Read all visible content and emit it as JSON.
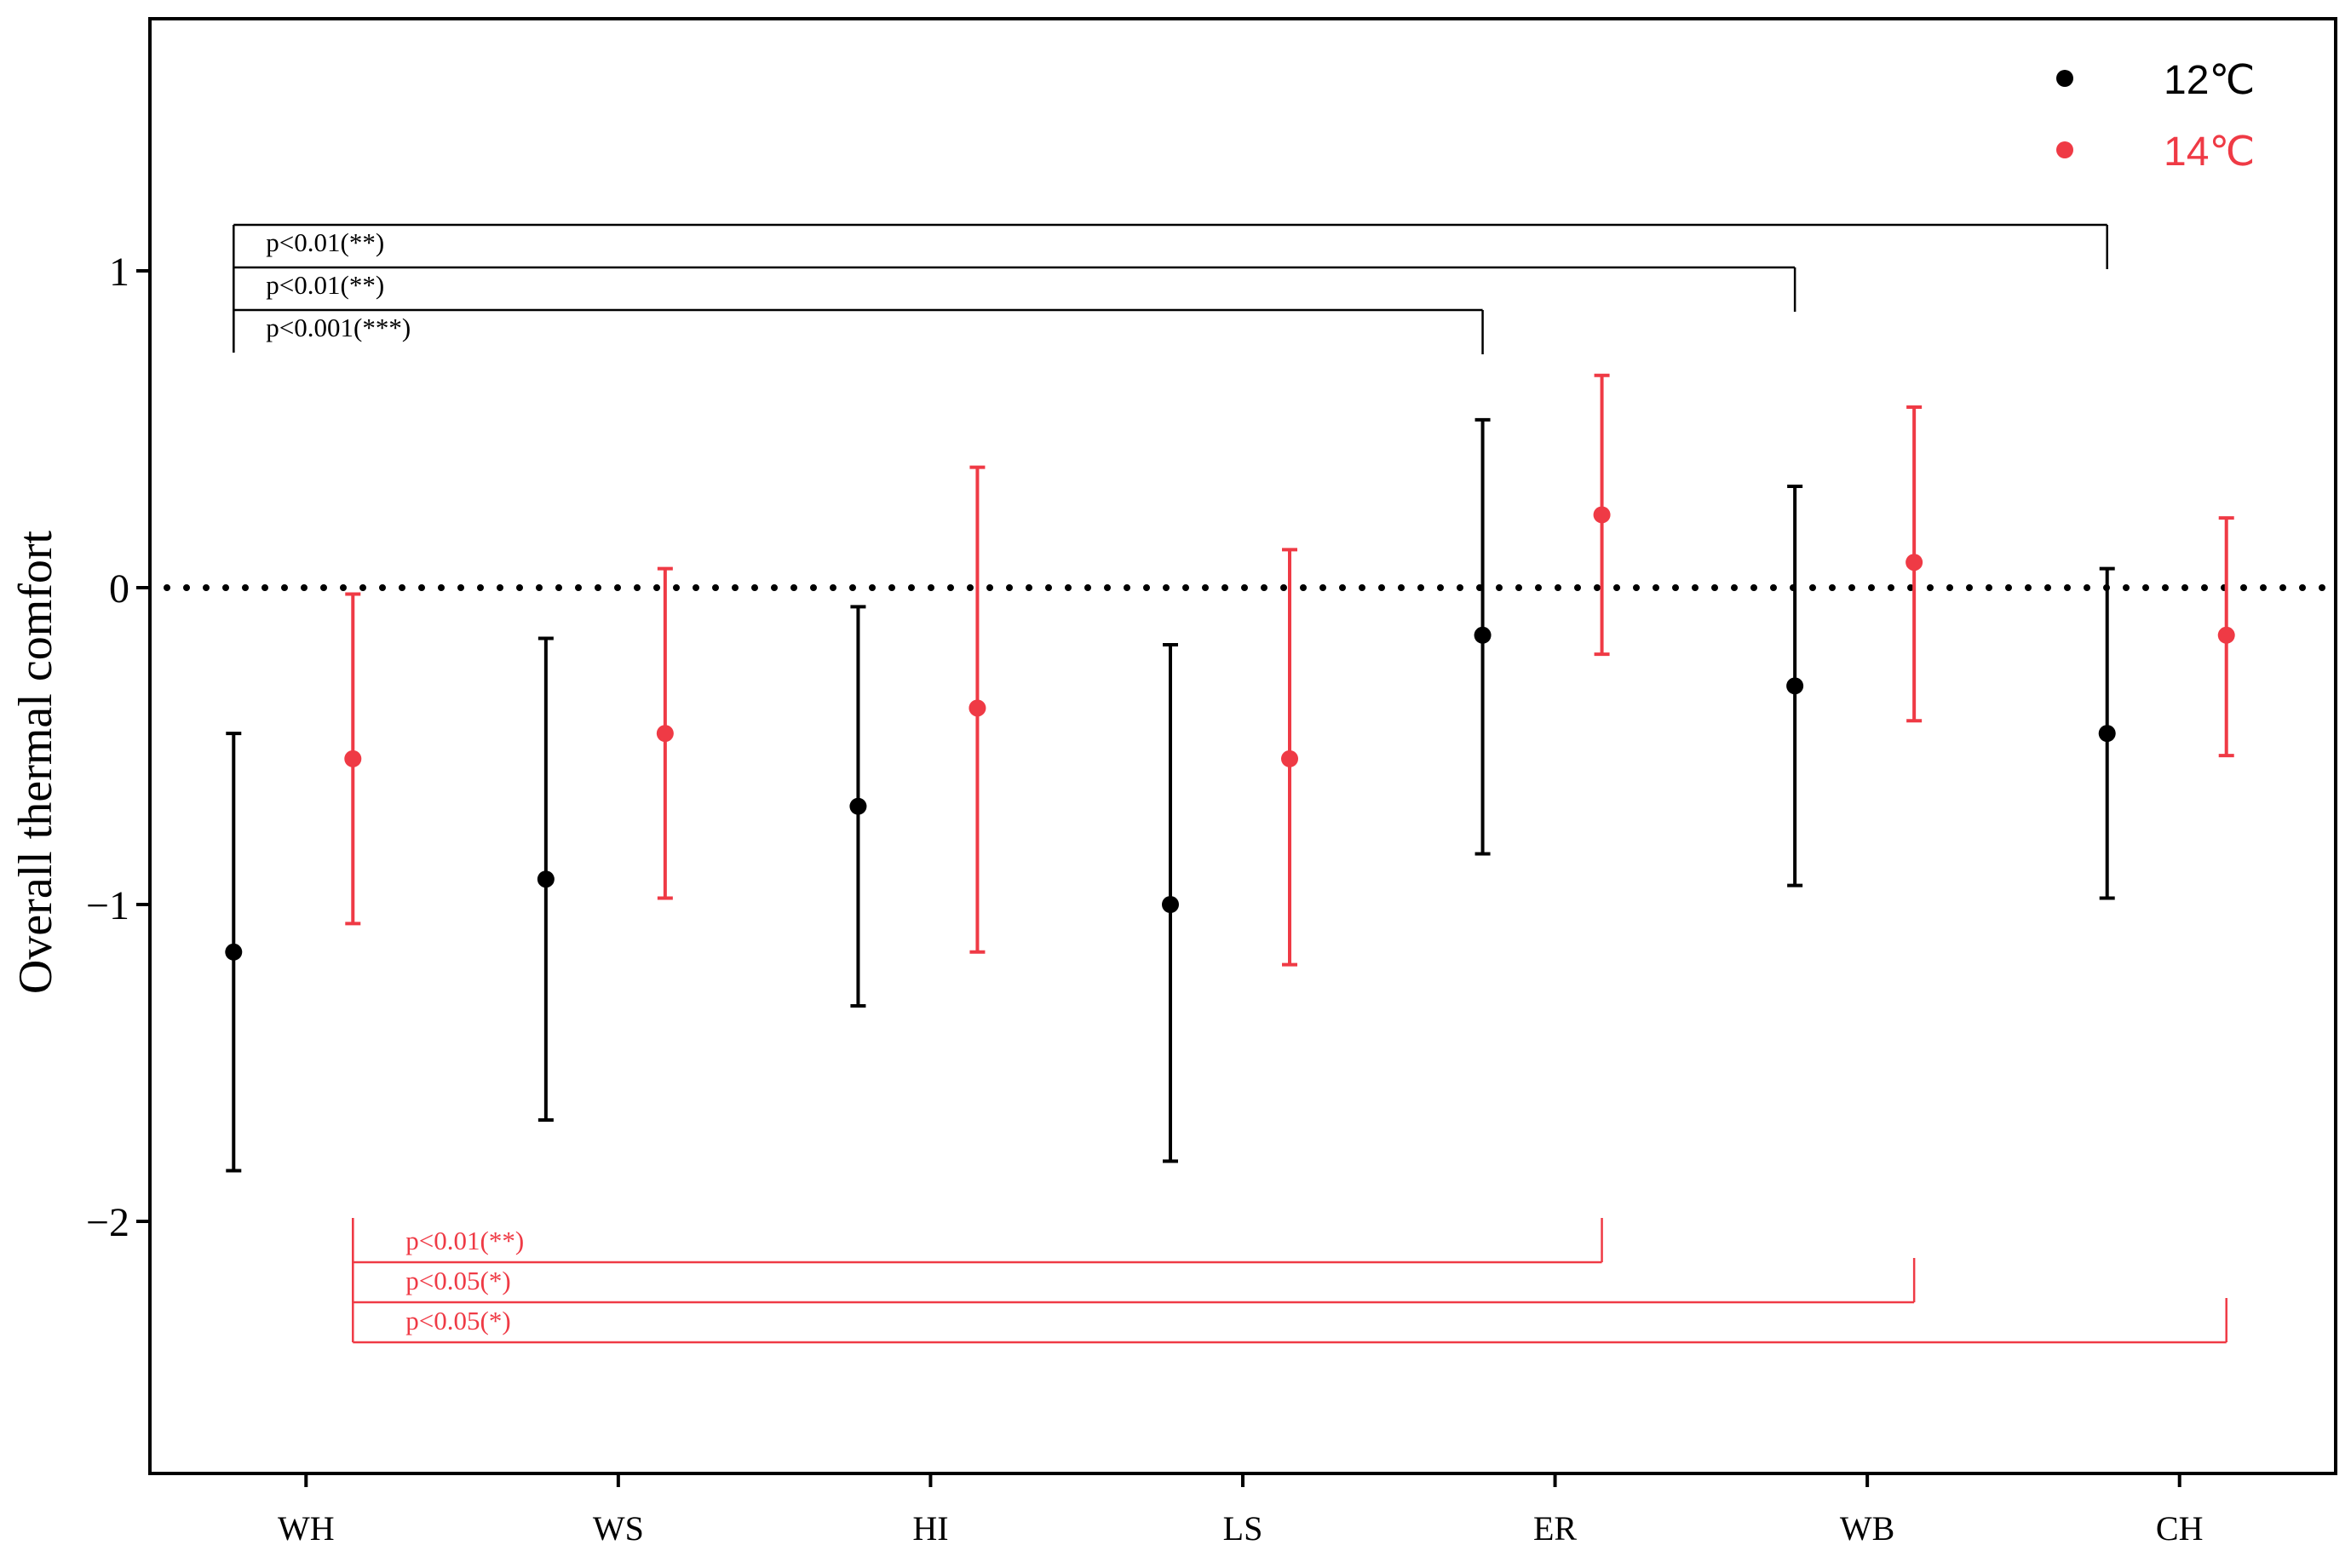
{
  "chart_data": {
    "type": "scatter",
    "ylabel": "Overall  thermal comfort",
    "ylim": [
      -2.8,
      1.8
    ],
    "yticks": [
      1,
      0,
      -1,
      -2
    ],
    "ytick_labels": [
      "1",
      "0",
      "−1",
      "−2"
    ],
    "reference_line": 0,
    "categories": [
      "WH",
      "WS",
      "HI",
      "LS",
      "ER",
      "WB",
      "CH"
    ],
    "legend_position": "top-right",
    "series": [
      {
        "name": "12℃",
        "color": "#000000",
        "mean": [
          -1.15,
          -0.92,
          -0.69,
          -1.0,
          -0.15,
          -0.31,
          -0.46
        ],
        "lower": [
          -1.84,
          -1.68,
          -1.32,
          -1.81,
          -0.84,
          -0.94,
          -0.98
        ],
        "upper": [
          -0.46,
          -0.16,
          -0.06,
          -0.18,
          0.53,
          0.32,
          0.06
        ]
      },
      {
        "name": "14℃",
        "color": "#ef3a45",
        "mean": [
          -0.54,
          -0.46,
          -0.38,
          -0.54,
          0.23,
          0.08,
          -0.15
        ],
        "lower": [
          -1.06,
          -0.98,
          -1.15,
          -1.19,
          -0.21,
          -0.42,
          -0.53
        ],
        "upper": [
          -0.02,
          0.06,
          0.38,
          0.12,
          0.67,
          0.57,
          0.22
        ]
      }
    ],
    "comparisons": [
      {
        "series": 0,
        "from": 0,
        "to": 6,
        "label": "p<0.01(**)",
        "position": "top"
      },
      {
        "series": 0,
        "from": 0,
        "to": 5,
        "label": "p<0.01(**)",
        "position": "top"
      },
      {
        "series": 0,
        "from": 0,
        "to": 4,
        "label": "p<0.001(***)",
        "position": "top"
      },
      {
        "series": 1,
        "from": 0,
        "to": 4,
        "label": "p<0.01(**)",
        "position": "bottom"
      },
      {
        "series": 1,
        "from": 0,
        "to": 5,
        "label": "p<0.05(*)",
        "position": "bottom"
      },
      {
        "series": 1,
        "from": 0,
        "to": 6,
        "label": "p<0.05(*)",
        "position": "bottom"
      }
    ]
  }
}
